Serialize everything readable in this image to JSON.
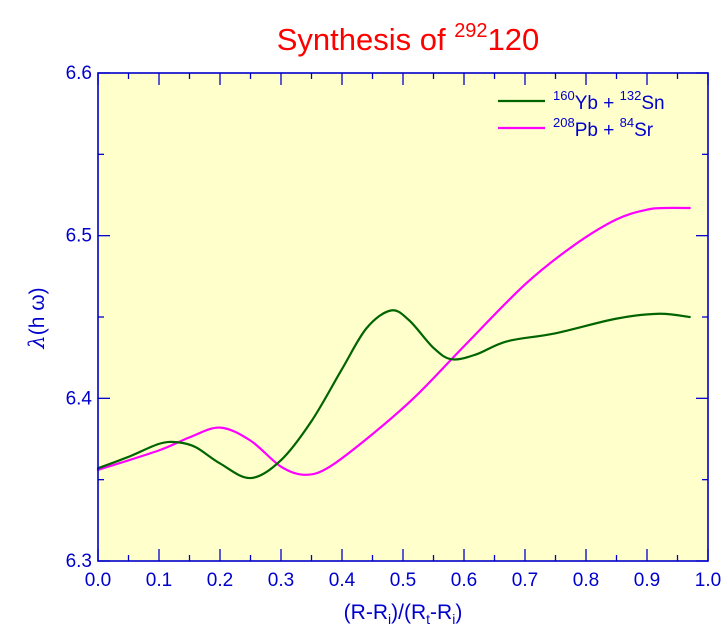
{
  "chart_data": {
    "type": "line",
    "title": {
      "main": "Synthesis of ",
      "sup": "292",
      "rest": "120"
    },
    "xlabel": {
      "p1": "(R-R",
      "s1": "i",
      "p2": ")/(R",
      "s2": "t",
      "p3": "-R",
      "s3": "i",
      "p4": ")"
    },
    "ylabel": {
      "sym": "λ",
      "rest": "(h ω)"
    },
    "xlim": [
      0.0,
      1.0
    ],
    "ylim": [
      6.3,
      6.6
    ],
    "xticks": [
      "0.0",
      "0.1",
      "0.2",
      "0.3",
      "0.4",
      "0.5",
      "0.6",
      "0.7",
      "0.8",
      "0.9",
      "1.0"
    ],
    "yticks": [
      "6.3",
      "6.4",
      "6.5",
      "6.6"
    ],
    "plot_background": "#ffffcc",
    "axis_color": "#0000cc",
    "legend_position": "top-right",
    "series": [
      {
        "name": "160Yb + 132Sn",
        "label": {
          "sup1": "160",
          "a": "Yb + ",
          "sup2": "132",
          "b": "Sn"
        },
        "color": "#006400",
        "x": [
          0.0,
          0.05,
          0.1,
          0.13,
          0.16,
          0.2,
          0.25,
          0.3,
          0.35,
          0.4,
          0.44,
          0.48,
          0.51,
          0.55,
          0.58,
          0.62,
          0.67,
          0.75,
          0.85,
          0.92,
          0.97
        ],
        "y": [
          6.357,
          6.364,
          6.372,
          6.373,
          6.37,
          6.36,
          6.351,
          6.362,
          6.386,
          6.418,
          6.443,
          6.454,
          6.448,
          6.431,
          6.424,
          6.427,
          6.435,
          6.44,
          6.449,
          6.452,
          6.45
        ]
      },
      {
        "name": "208Pb + 84Sr",
        "label": {
          "sup1": "208",
          "a": "Pb + ",
          "sup2": "84",
          "b": "Sr"
        },
        "color": "#ff00ff",
        "x": [
          0.0,
          0.1,
          0.15,
          0.2,
          0.25,
          0.3,
          0.34,
          0.38,
          0.45,
          0.52,
          0.6,
          0.7,
          0.78,
          0.85,
          0.9,
          0.93,
          0.97
        ],
        "y": [
          6.356,
          6.368,
          6.376,
          6.382,
          6.374,
          6.358,
          6.353,
          6.358,
          6.378,
          6.401,
          6.432,
          6.47,
          6.494,
          6.51,
          6.516,
          6.517,
          6.517
        ]
      }
    ]
  }
}
